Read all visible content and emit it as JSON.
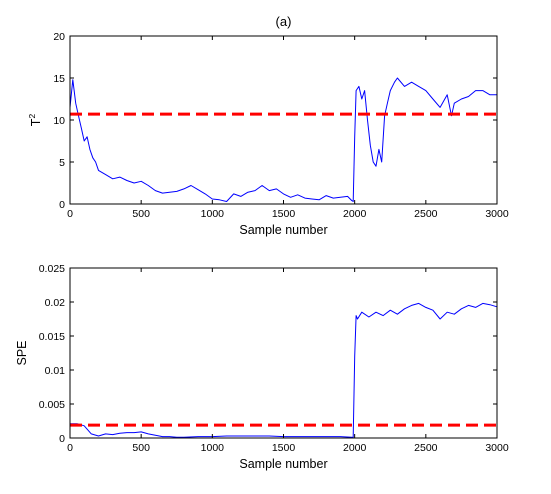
{
  "chart_data": [
    {
      "type": "line",
      "title": "(a)",
      "xlabel": "Sample number",
      "ylabel": "T",
      "ylabel_superscript": "2",
      "xlim": [
        0,
        3000
      ],
      "ylim": [
        0,
        20
      ],
      "xticks": [
        "0",
        "500",
        "1000",
        "1500",
        "2000",
        "2500",
        "3000"
      ],
      "yticks": [
        "0",
        "5",
        "10",
        "15",
        "20"
      ],
      "grid": false,
      "colors": {
        "series": "#0000ff",
        "limit": "#ff0000"
      },
      "series": [
        {
          "style": "solid",
          "x": [
            0,
            20,
            40,
            60,
            80,
            100,
            120,
            140,
            160,
            180,
            200,
            250,
            300,
            350,
            400,
            450,
            500,
            550,
            600,
            650,
            700,
            750,
            800,
            850,
            900,
            950,
            1000,
            1050,
            1100,
            1150,
            1200,
            1250,
            1300,
            1350,
            1400,
            1450,
            1500,
            1550,
            1600,
            1650,
            1700,
            1750,
            1800,
            1850,
            1900,
            1950,
            1980,
            1990,
            2000,
            2010,
            2030,
            2050,
            2070,
            2090,
            2110,
            2130,
            2150,
            2170,
            2190,
            2210,
            2230,
            2250,
            2280,
            2300,
            2350,
            2400,
            2450,
            2500,
            2550,
            2600,
            2650,
            2680,
            2700,
            2750,
            2800,
            2850,
            2900,
            2950,
            3000
          ],
          "y": [
            11.5,
            14.8,
            12,
            10.5,
            9,
            7.5,
            8,
            6.5,
            5.5,
            5,
            4,
            3.5,
            3,
            3.2,
            2.8,
            2.5,
            2.7,
            2.2,
            1.6,
            1.3,
            1.4,
            1.5,
            1.8,
            2.2,
            1.7,
            1.2,
            0.6,
            0.5,
            0.3,
            1.2,
            0.9,
            1.4,
            1.6,
            2.2,
            1.6,
            1.8,
            1.2,
            0.8,
            1.1,
            0.7,
            0.6,
            0.5,
            1.0,
            0.7,
            0.8,
            0.9,
            0.4,
            0.3,
            8,
            13.5,
            14,
            12.5,
            13.5,
            10,
            7,
            5,
            4.5,
            6.5,
            5,
            10.5,
            12,
            13.5,
            14.5,
            15,
            14,
            14.5,
            14,
            13.5,
            12.5,
            11.5,
            13,
            10.5,
            12,
            12.5,
            12.8,
            13.5,
            13.5,
            13,
            13
          ]
        },
        {
          "style": "dashed",
          "x": [
            0,
            3000
          ],
          "y": [
            10.7,
            10.7
          ]
        }
      ]
    },
    {
      "type": "line",
      "title": "",
      "xlabel": "Sample number",
      "ylabel": "SPE",
      "xlim": [
        0,
        3000
      ],
      "ylim": [
        0,
        0.025
      ],
      "xticks": [
        "0",
        "500",
        "1000",
        "1500",
        "2000",
        "2500",
        "3000"
      ],
      "yticks": [
        "0",
        "0.005",
        "0.01",
        "0.015",
        "0.02",
        "0.025"
      ],
      "grid": false,
      "colors": {
        "series": "#0000ff",
        "limit": "#ff0000"
      },
      "series": [
        {
          "style": "solid",
          "x": [
            0,
            50,
            100,
            150,
            200,
            250,
            300,
            350,
            400,
            450,
            500,
            550,
            600,
            650,
            700,
            750,
            800,
            900,
            1000,
            1100,
            1200,
            1300,
            1400,
            1500,
            1600,
            1700,
            1800,
            1900,
            1980,
            1990,
            2000,
            2010,
            2020,
            2050,
            2100,
            2150,
            2200,
            2250,
            2300,
            2350,
            2400,
            2450,
            2500,
            2550,
            2600,
            2650,
            2700,
            2750,
            2800,
            2850,
            2900,
            2950,
            3000
          ],
          "y": [
            0.0021,
            0.0021,
            0.0018,
            0.0006,
            0.0003,
            0.0006,
            0.0005,
            0.0007,
            0.0008,
            0.0008,
            0.0009,
            0.0006,
            0.0004,
            0.0002,
            0.0002,
            0.0001,
            0.0001,
            0.0002,
            0.0002,
            0.0003,
            0.0003,
            0.0003,
            0.0003,
            0.0002,
            0.0002,
            0.0002,
            0.0002,
            0.0002,
            0.0001,
            0.0001,
            0.012,
            0.018,
            0.0175,
            0.0185,
            0.0178,
            0.0185,
            0.018,
            0.0188,
            0.0182,
            0.019,
            0.0195,
            0.0198,
            0.0192,
            0.0188,
            0.0175,
            0.0185,
            0.0182,
            0.019,
            0.0195,
            0.0192,
            0.0198,
            0.0196,
            0.0193
          ]
        },
        {
          "style": "dashed",
          "x": [
            0,
            3000
          ],
          "y": [
            0.0019,
            0.0019
          ]
        }
      ]
    }
  ]
}
